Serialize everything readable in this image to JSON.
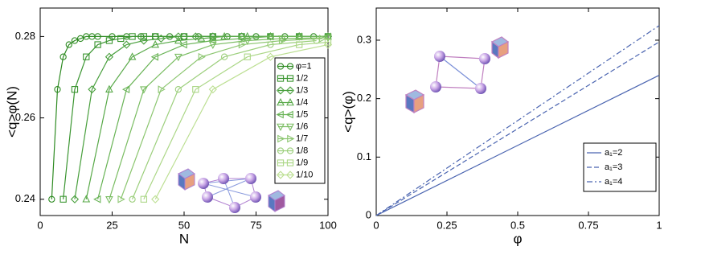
{
  "chart_data": [
    {
      "type": "line",
      "xlabel": "N",
      "ylabel": "<q>φ(N)",
      "xlim": [
        0,
        100
      ],
      "ylim": [
        0.236,
        0.287
      ],
      "xticks": [
        0,
        25,
        50,
        75,
        100
      ],
      "yticks": [
        0.24,
        0.26,
        0.28
      ],
      "legend": "right",
      "series": [
        {
          "name": "φ=1",
          "color": "#2e8b22",
          "marker": "circle",
          "x": [
            4,
            6,
            8,
            10,
            12,
            14,
            16,
            18,
            20,
            25,
            30,
            35,
            40,
            45,
            50,
            55,
            60,
            65,
            70,
            75,
            80,
            85,
            90,
            95,
            100
          ],
          "values": [
            0.24,
            0.267,
            0.275,
            0.278,
            0.279,
            0.2795,
            0.28,
            0.28,
            0.28,
            0.28,
            0.28,
            0.28,
            0.28,
            0.28,
            0.28,
            0.28,
            0.28,
            0.28,
            0.28,
            0.28,
            0.28,
            0.28,
            0.28,
            0.28,
            0.28
          ]
        },
        {
          "name": "1/2",
          "color": "#3a9530",
          "marker": "square",
          "x": [
            8,
            12,
            16,
            20,
            24,
            28,
            32,
            36,
            40,
            50,
            60,
            70,
            80,
            90,
            100
          ],
          "values": [
            0.24,
            0.267,
            0.275,
            0.278,
            0.279,
            0.2795,
            0.28,
            0.28,
            0.28,
            0.28,
            0.28,
            0.28,
            0.28,
            0.28,
            0.28
          ]
        },
        {
          "name": "1/3",
          "color": "#489f3c",
          "marker": "diamond",
          "x": [
            12,
            18,
            24,
            30,
            36,
            42,
            48,
            54,
            60,
            70,
            80,
            90,
            100
          ],
          "values": [
            0.24,
            0.267,
            0.275,
            0.278,
            0.279,
            0.2795,
            0.28,
            0.28,
            0.28,
            0.28,
            0.28,
            0.28,
            0.28
          ]
        },
        {
          "name": "1/4",
          "color": "#58a948",
          "marker": "triangle-up",
          "x": [
            16,
            24,
            32,
            40,
            48,
            56,
            64,
            72,
            80,
            90,
            100
          ],
          "values": [
            0.24,
            0.267,
            0.275,
            0.278,
            0.279,
            0.2795,
            0.28,
            0.28,
            0.28,
            0.28,
            0.28
          ]
        },
        {
          "name": "1/5",
          "color": "#68b355",
          "marker": "triangle-left",
          "x": [
            20,
            30,
            40,
            50,
            60,
            70,
            80,
            90,
            100
          ],
          "values": [
            0.24,
            0.267,
            0.275,
            0.278,
            0.279,
            0.2795,
            0.28,
            0.28,
            0.28
          ]
        },
        {
          "name": "1/6",
          "color": "#7abd62",
          "marker": "triangle-down",
          "x": [
            24,
            36,
            48,
            60,
            72,
            84,
            100
          ],
          "values": [
            0.24,
            0.267,
            0.275,
            0.278,
            0.279,
            0.2795,
            0.2797
          ]
        },
        {
          "name": "1/7",
          "color": "#8cc670",
          "marker": "triangle-right",
          "x": [
            28,
            42,
            56,
            70,
            84,
            98
          ],
          "values": [
            0.24,
            0.267,
            0.275,
            0.278,
            0.279,
            0.2795
          ]
        },
        {
          "name": "1/8",
          "color": "#9ccf7c",
          "marker": "circle",
          "x": [
            32,
            48,
            64,
            80,
            96
          ],
          "values": [
            0.24,
            0.267,
            0.275,
            0.278,
            0.279
          ]
        },
        {
          "name": "1/9",
          "color": "#acd787",
          "marker": "square",
          "x": [
            36,
            54,
            72,
            90,
            100
          ],
          "values": [
            0.24,
            0.267,
            0.275,
            0.278,
            0.2786
          ]
        },
        {
          "name": "1/10",
          "color": "#bcdf92",
          "marker": "diamond",
          "x": [
            40,
            60,
            80,
            100
          ],
          "values": [
            0.24,
            0.267,
            0.275,
            0.278
          ]
        }
      ]
    },
    {
      "type": "line",
      "xlabel": "φ",
      "ylabel": "<q>(φ)",
      "xlim": [
        0,
        1
      ],
      "ylim": [
        0,
        0.355
      ],
      "xticks": [
        0,
        0.25,
        0.5,
        0.75,
        1
      ],
      "yticks": [
        0,
        0.1,
        0.2,
        0.3
      ],
      "legend": "lower right",
      "series": [
        {
          "name": "a₁=2",
          "color": "#4a64b0",
          "line_style": "solid",
          "x": [
            0,
            1
          ],
          "values": [
            0,
            0.24
          ]
        },
        {
          "name": "a₁=3",
          "color": "#4a64b0",
          "line_style": "dashed",
          "x": [
            0,
            1
          ],
          "values": [
            0,
            0.297
          ]
        },
        {
          "name": "a₁=4",
          "color": "#4a64b0",
          "line_style": "dashdot",
          "x": [
            0,
            1
          ],
          "values": [
            0,
            0.325
          ]
        }
      ]
    }
  ]
}
